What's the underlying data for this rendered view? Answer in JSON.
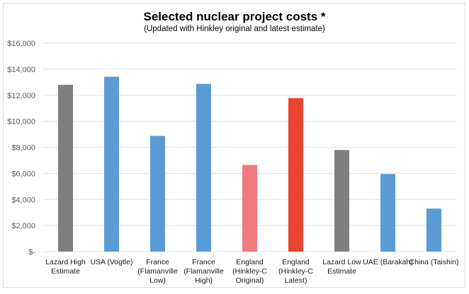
{
  "chart_data": {
    "type": "bar",
    "title": "Selected nuclear project costs *",
    "subtitle": "(Updated with Hinkley original and latest estimate)",
    "xlabel": "",
    "ylabel": "",
    "ylim": [
      0,
      16000
    ],
    "yticks": [
      0,
      2000,
      4000,
      6000,
      8000,
      10000,
      12000,
      14000,
      16000
    ],
    "ytick_labels": [
      "$-",
      "$2,000",
      "$4,000",
      "$6,000",
      "$8,000",
      "$10,000",
      "$12,000",
      "$14,000",
      "$16,000"
    ],
    "grid": true,
    "legend": "none",
    "categories": [
      [
        "Lazard High",
        "Estimate"
      ],
      [
        "USA (Vogtle)"
      ],
      [
        "France",
        "(Flamanville",
        "Low)"
      ],
      [
        "France",
        "(Flamanville",
        "High)"
      ],
      [
        "England",
        "(Hinkley-C",
        "Original)"
      ],
      [
        "England",
        "(Hinkley-C",
        "Latest)"
      ],
      [
        "Lazard Low",
        "Estimate"
      ],
      [
        "UAE (Barakah)"
      ],
      [
        "China (Taishin)"
      ]
    ],
    "values": [
      12800,
      13420,
      8880,
      12870,
      6650,
      11780,
      7800,
      5950,
      3300
    ],
    "colors": [
      "#7f7f7f",
      "#5b9bd5",
      "#5b9bd5",
      "#5b9bd5",
      "#f07a7e",
      "#ea4530",
      "#7f7f7f",
      "#5b9bd5",
      "#5b9bd5"
    ]
  },
  "colors": {
    "gridline": "#e6e6e6",
    "frame": "#d9d9d9"
  }
}
